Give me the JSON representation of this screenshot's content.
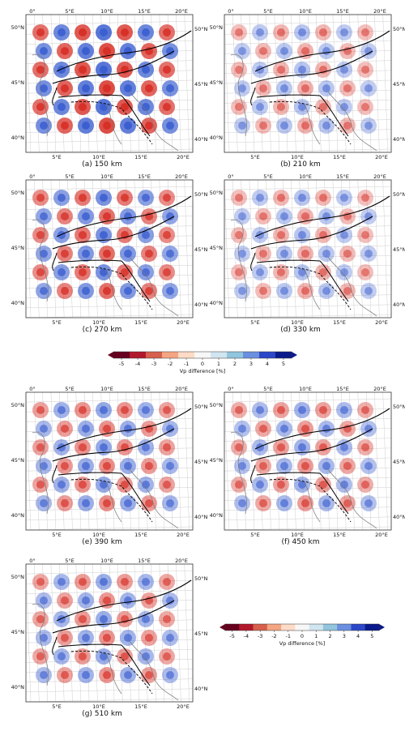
{
  "panels": [
    {
      "caption": "(a) 150 km",
      "amplitude": 1.0
    },
    {
      "caption": "(b) 210 km",
      "amplitude": 0.3
    },
    {
      "caption": "(c) 270 km",
      "amplitude": 0.75
    },
    {
      "caption": "(d) 330 km",
      "amplitude": 0.3
    },
    {
      "caption": "(e) 390 km",
      "amplitude": 0.55
    },
    {
      "caption": "(f) 450 km",
      "amplitude": 0.45
    },
    {
      "caption": "(g) 510 km",
      "amplitude": 0.5
    }
  ],
  "axes": {
    "top_ticks": [
      "0°",
      "5°E",
      "10°E",
      "15°E",
      "20°E"
    ],
    "bottom_ticks": [
      "5°E",
      "10°E",
      "15°E",
      "20°E"
    ],
    "lat_ticks": [
      "50°N",
      "45°N",
      "40°N"
    ]
  },
  "colorbar": {
    "label": "Vp difference [%]",
    "ticks": [
      "-5",
      "-4",
      "-3",
      "-2",
      "-1",
      "0",
      "1",
      "2",
      "3",
      "4",
      "5"
    ],
    "colors": [
      "#67001f",
      "#b2182b",
      "#d6604d",
      "#f4a582",
      "#fddbc7",
      "#f7f7f7",
      "#d1e5f0",
      "#92c5de",
      "#6b8fe0",
      "#2c47c8",
      "#0a1a8c"
    ]
  }
}
